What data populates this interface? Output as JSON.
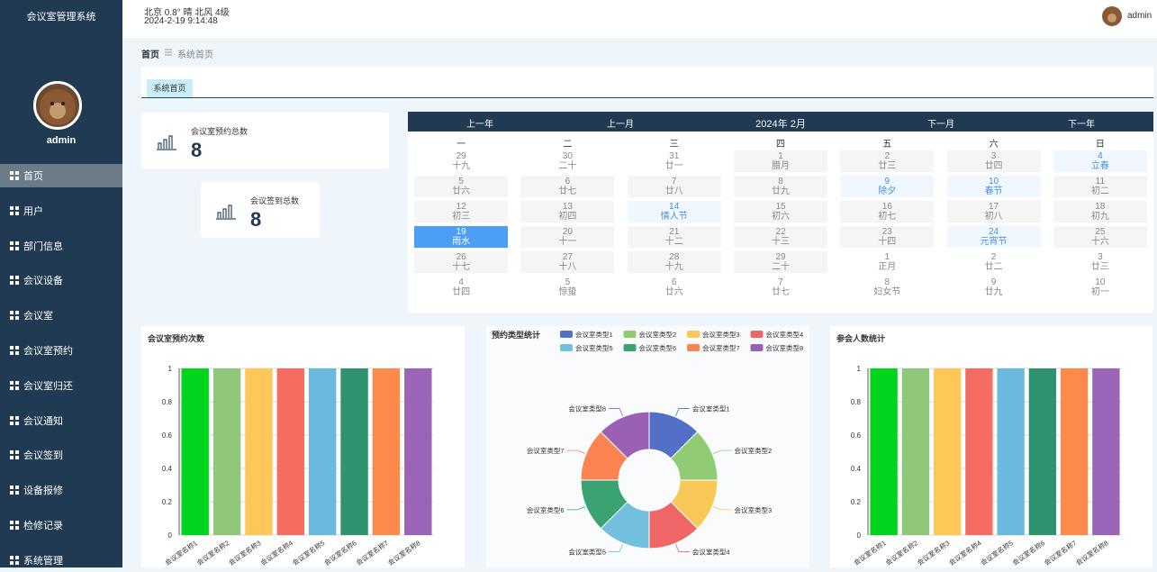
{
  "header": {
    "system_title": "会议室管理系统",
    "weather": "北京  0.8°  晴  北风  4级",
    "datetime": "2024-2-19 9:14:48",
    "user": "admin"
  },
  "sidebar": {
    "user": "admin",
    "menu": [
      "首页",
      "用户",
      "部门信息",
      "会议设备",
      "会议室",
      "会议室预约",
      "会议室归还",
      "会议通知",
      "会议签到",
      "设备报修",
      "检修记录",
      "系统管理"
    ]
  },
  "breadcrumb": {
    "home": "首页",
    "current": "系统首页"
  },
  "tab": "系统首页",
  "stats": [
    {
      "label": "会议室预约总数",
      "value": 8
    },
    {
      "label": "会议签到总数",
      "value": 8
    }
  ],
  "calendar": {
    "prev_year": "上一年",
    "prev_month": "上一月",
    "month": "2024年 2月",
    "next_month": "下一月",
    "next_year": "下一年",
    "weekdays": [
      "一",
      "二",
      "三",
      "四",
      "五",
      "六",
      "日"
    ],
    "weeks": [
      [
        {
          "day": 29,
          "lunar": "十九"
        },
        {
          "day": 30,
          "lunar": "二十"
        },
        {
          "day": 31,
          "lunar": "廿一"
        },
        {
          "day": 1,
          "lunar": "腊月"
        },
        {
          "day": 2,
          "lunar": "廿三"
        },
        {
          "day": 3,
          "lunar": "廿四"
        },
        {
          "day": 4,
          "lunar": "立春"
        }
      ],
      [
        {
          "day": 5,
          "lunar": "廿六"
        },
        {
          "day": 6,
          "lunar": "廿七"
        },
        {
          "day": 7,
          "lunar": "廿八"
        },
        {
          "day": 8,
          "lunar": "廿九"
        },
        {
          "day": 9,
          "lunar": "除夕"
        },
        {
          "day": 10,
          "lunar": "春节"
        },
        {
          "day": 11,
          "lunar": "初二"
        }
      ],
      [
        {
          "day": 12,
          "lunar": "初三"
        },
        {
          "day": 13,
          "lunar": "初四"
        },
        {
          "day": 14,
          "lunar": "情人节"
        },
        {
          "day": 15,
          "lunar": "初六"
        },
        {
          "day": 16,
          "lunar": "初七"
        },
        {
          "day": 17,
          "lunar": "初八"
        },
        {
          "day": 18,
          "lunar": "初九"
        }
      ],
      [
        {
          "day": 19,
          "lunar": "雨水"
        },
        {
          "day": 20,
          "lunar": "十一"
        },
        {
          "day": 21,
          "lunar": "十二"
        },
        {
          "day": 22,
          "lunar": "十三"
        },
        {
          "day": 23,
          "lunar": "十四"
        },
        {
          "day": 24,
          "lunar": "元宵节"
        },
        {
          "day": 25,
          "lunar": "十六"
        }
      ],
      [
        {
          "day": 26,
          "lunar": "十七"
        },
        {
          "day": 27,
          "lunar": "十八"
        },
        {
          "day": 28,
          "lunar": "十九"
        },
        {
          "day": 29,
          "lunar": "二十"
        },
        {
          "day": 1,
          "lunar": "正月"
        },
        {
          "day": 2,
          "lunar": "廿二"
        },
        {
          "day": 3,
          "lunar": "廿三"
        }
      ],
      [
        {
          "day": 4,
          "lunar": "廿四"
        },
        {
          "day": 5,
          "lunar": "惊蛰"
        },
        {
          "day": 6,
          "lunar": "廿六"
        },
        {
          "day": 7,
          "lunar": "廿七"
        },
        {
          "day": 8,
          "lunar": "妇女节"
        },
        {
          "day": 9,
          "lunar": "廿九"
        },
        {
          "day": 10,
          "lunar": "初一"
        }
      ]
    ]
  },
  "chart_data": [
    {
      "type": "bar",
      "title": "会议室预约次数",
      "categories": [
        "会议室名称1",
        "会议室名称2",
        "会议室名称3",
        "会议室名称4",
        "会议室名称5",
        "会议室名称6",
        "会议室名称7",
        "会议室名称8"
      ],
      "values": [
        1,
        1,
        1,
        1,
        1,
        1,
        1,
        1
      ],
      "colors": [
        "#00d41c",
        "#91c77a",
        "#ffc658",
        "#f56c61",
        "#6cb9e0",
        "#2e936e",
        "#fc8a4a",
        "#9a65b8"
      ],
      "ylim": [
        0,
        1
      ],
      "yticks": [
        0,
        0.2,
        0.4,
        0.6,
        0.8,
        1
      ],
      "grid": true
    },
    {
      "type": "pie",
      "title": "预约类型统计",
      "categories": [
        "会议室类型1",
        "会议室类型2",
        "会议室类型3",
        "会议室类型4",
        "会议室类型5",
        "会议室类型6",
        "会议室类型7",
        "会议室类型8"
      ],
      "values": [
        1,
        1,
        1,
        1,
        1,
        1,
        1,
        1
      ],
      "colors": [
        "#5470c6",
        "#91cc75",
        "#fac858",
        "#ee6666",
        "#73c0de",
        "#3ba272",
        "#fc8452",
        "#9a60b4"
      ],
      "legend": "top"
    },
    {
      "type": "bar",
      "title": "参会人数统计",
      "categories": [
        "会议室名称1",
        "会议室名称2",
        "会议室名称3",
        "会议室名称4",
        "会议室名称5",
        "会议室名称6",
        "会议室名称7",
        "会议室名称8"
      ],
      "values": [
        1,
        1,
        1,
        1,
        1,
        1,
        1,
        1
      ],
      "colors": [
        "#00d41c",
        "#91c77a",
        "#ffc658",
        "#f56c61",
        "#6cb9e0",
        "#2e936e",
        "#fc8a4a",
        "#9a65b8"
      ],
      "ylim": [
        0,
        1
      ],
      "yticks": [
        0,
        0.2,
        0.4,
        0.6,
        0.8,
        1
      ],
      "grid": true
    }
  ]
}
